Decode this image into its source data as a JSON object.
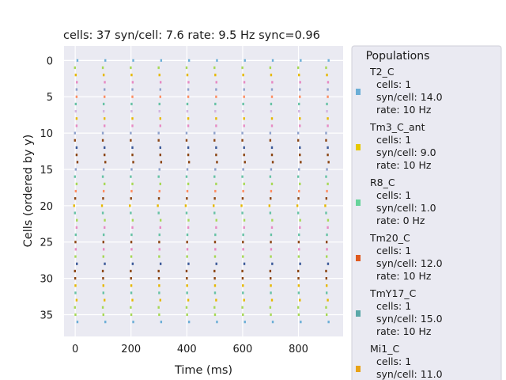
{
  "chart_data": {
    "type": "scatter",
    "title": "cells: 37   syn/cell: 7.6   rate: 9.5 Hz    sync=0.96",
    "xlabel": "Time (ms)",
    "ylabel": "Cells (ordered by y)",
    "xlim": [
      -40,
      960
    ],
    "ylim": [
      38,
      -2
    ],
    "xticks": [
      0,
      200,
      400,
      600,
      800
    ],
    "yticks": [
      0,
      5,
      10,
      15,
      20,
      25,
      30,
      35
    ],
    "grid": true,
    "burst_starts_ms": [
      8,
      108,
      208,
      308,
      408,
      508,
      608,
      708,
      808,
      908
    ],
    "cell_offsets_ms": [
      0,
      -9,
      -6,
      -2,
      -3,
      -3,
      -6,
      -6,
      -3,
      -3,
      -9,
      -9,
      -3,
      -3,
      0,
      -6,
      -9,
      -3,
      -6,
      -8,
      -12,
      -9,
      -2,
      -3,
      -6,
      -7,
      -6,
      -7,
      -2,
      -9,
      -8,
      -7,
      -7,
      -3,
      -9,
      -7,
      0
    ],
    "cell_colors": [
      "#6baed6",
      "#a6d854",
      "#e6b800",
      "#e78ac3",
      "#8da0cb",
      "#fc8d62",
      "#66c2a5",
      "#d4b4e0",
      "#e6b800",
      "#e78ac3",
      "#8da0cb",
      "#8b4513",
      "#3b5998",
      "#8b4513",
      "#8b4513",
      "#8da0cb",
      "#66c2a5",
      "#a6d854",
      "#fc8d62",
      "#8b4513",
      "#e6b800",
      "#66c2a5",
      "#a6d854",
      "#e78ac3",
      "#66c2a5",
      "#8b4513",
      "#e78ac3",
      "#a6d854",
      "#3b5998",
      "#8b4513",
      "#8b4513",
      "#e6b800",
      "#66c2a5",
      "#e6b800",
      "#a6d854",
      "#a6d854",
      "#6baed6"
    ],
    "legend": {
      "title": "Populations",
      "placement": "right",
      "entries": [
        {
          "name": "T2_C",
          "cells": "cells: 1",
          "syn": "syn/cell: 14.0",
          "rate": "rate: 10 Hz",
          "color": "#6baed6"
        },
        {
          "name": "Tm3_C_ant",
          "cells": "cells: 1",
          "syn": "syn/cell: 9.0",
          "rate": "rate: 10 Hz",
          "color": "#e6c800"
        },
        {
          "name": "R8_C",
          "cells": "cells: 1",
          "syn": "syn/cell: 1.0",
          "rate": "rate: 0 Hz",
          "color": "#66d39a"
        },
        {
          "name": "Tm20_C",
          "cells": "cells: 1",
          "syn": "syn/cell: 12.0",
          "rate": "rate: 10 Hz",
          "color": "#e05a1f"
        },
        {
          "name": "TmY17_C",
          "cells": "cells: 1",
          "syn": "syn/cell: 15.0",
          "rate": "rate: 10 Hz",
          "color": "#5aa8a8"
        },
        {
          "name": "Mi1_C",
          "cells": "cells: 1",
          "syn": "syn/cell: 11.0",
          "rate": "",
          "color": "#e8a317"
        }
      ]
    }
  }
}
